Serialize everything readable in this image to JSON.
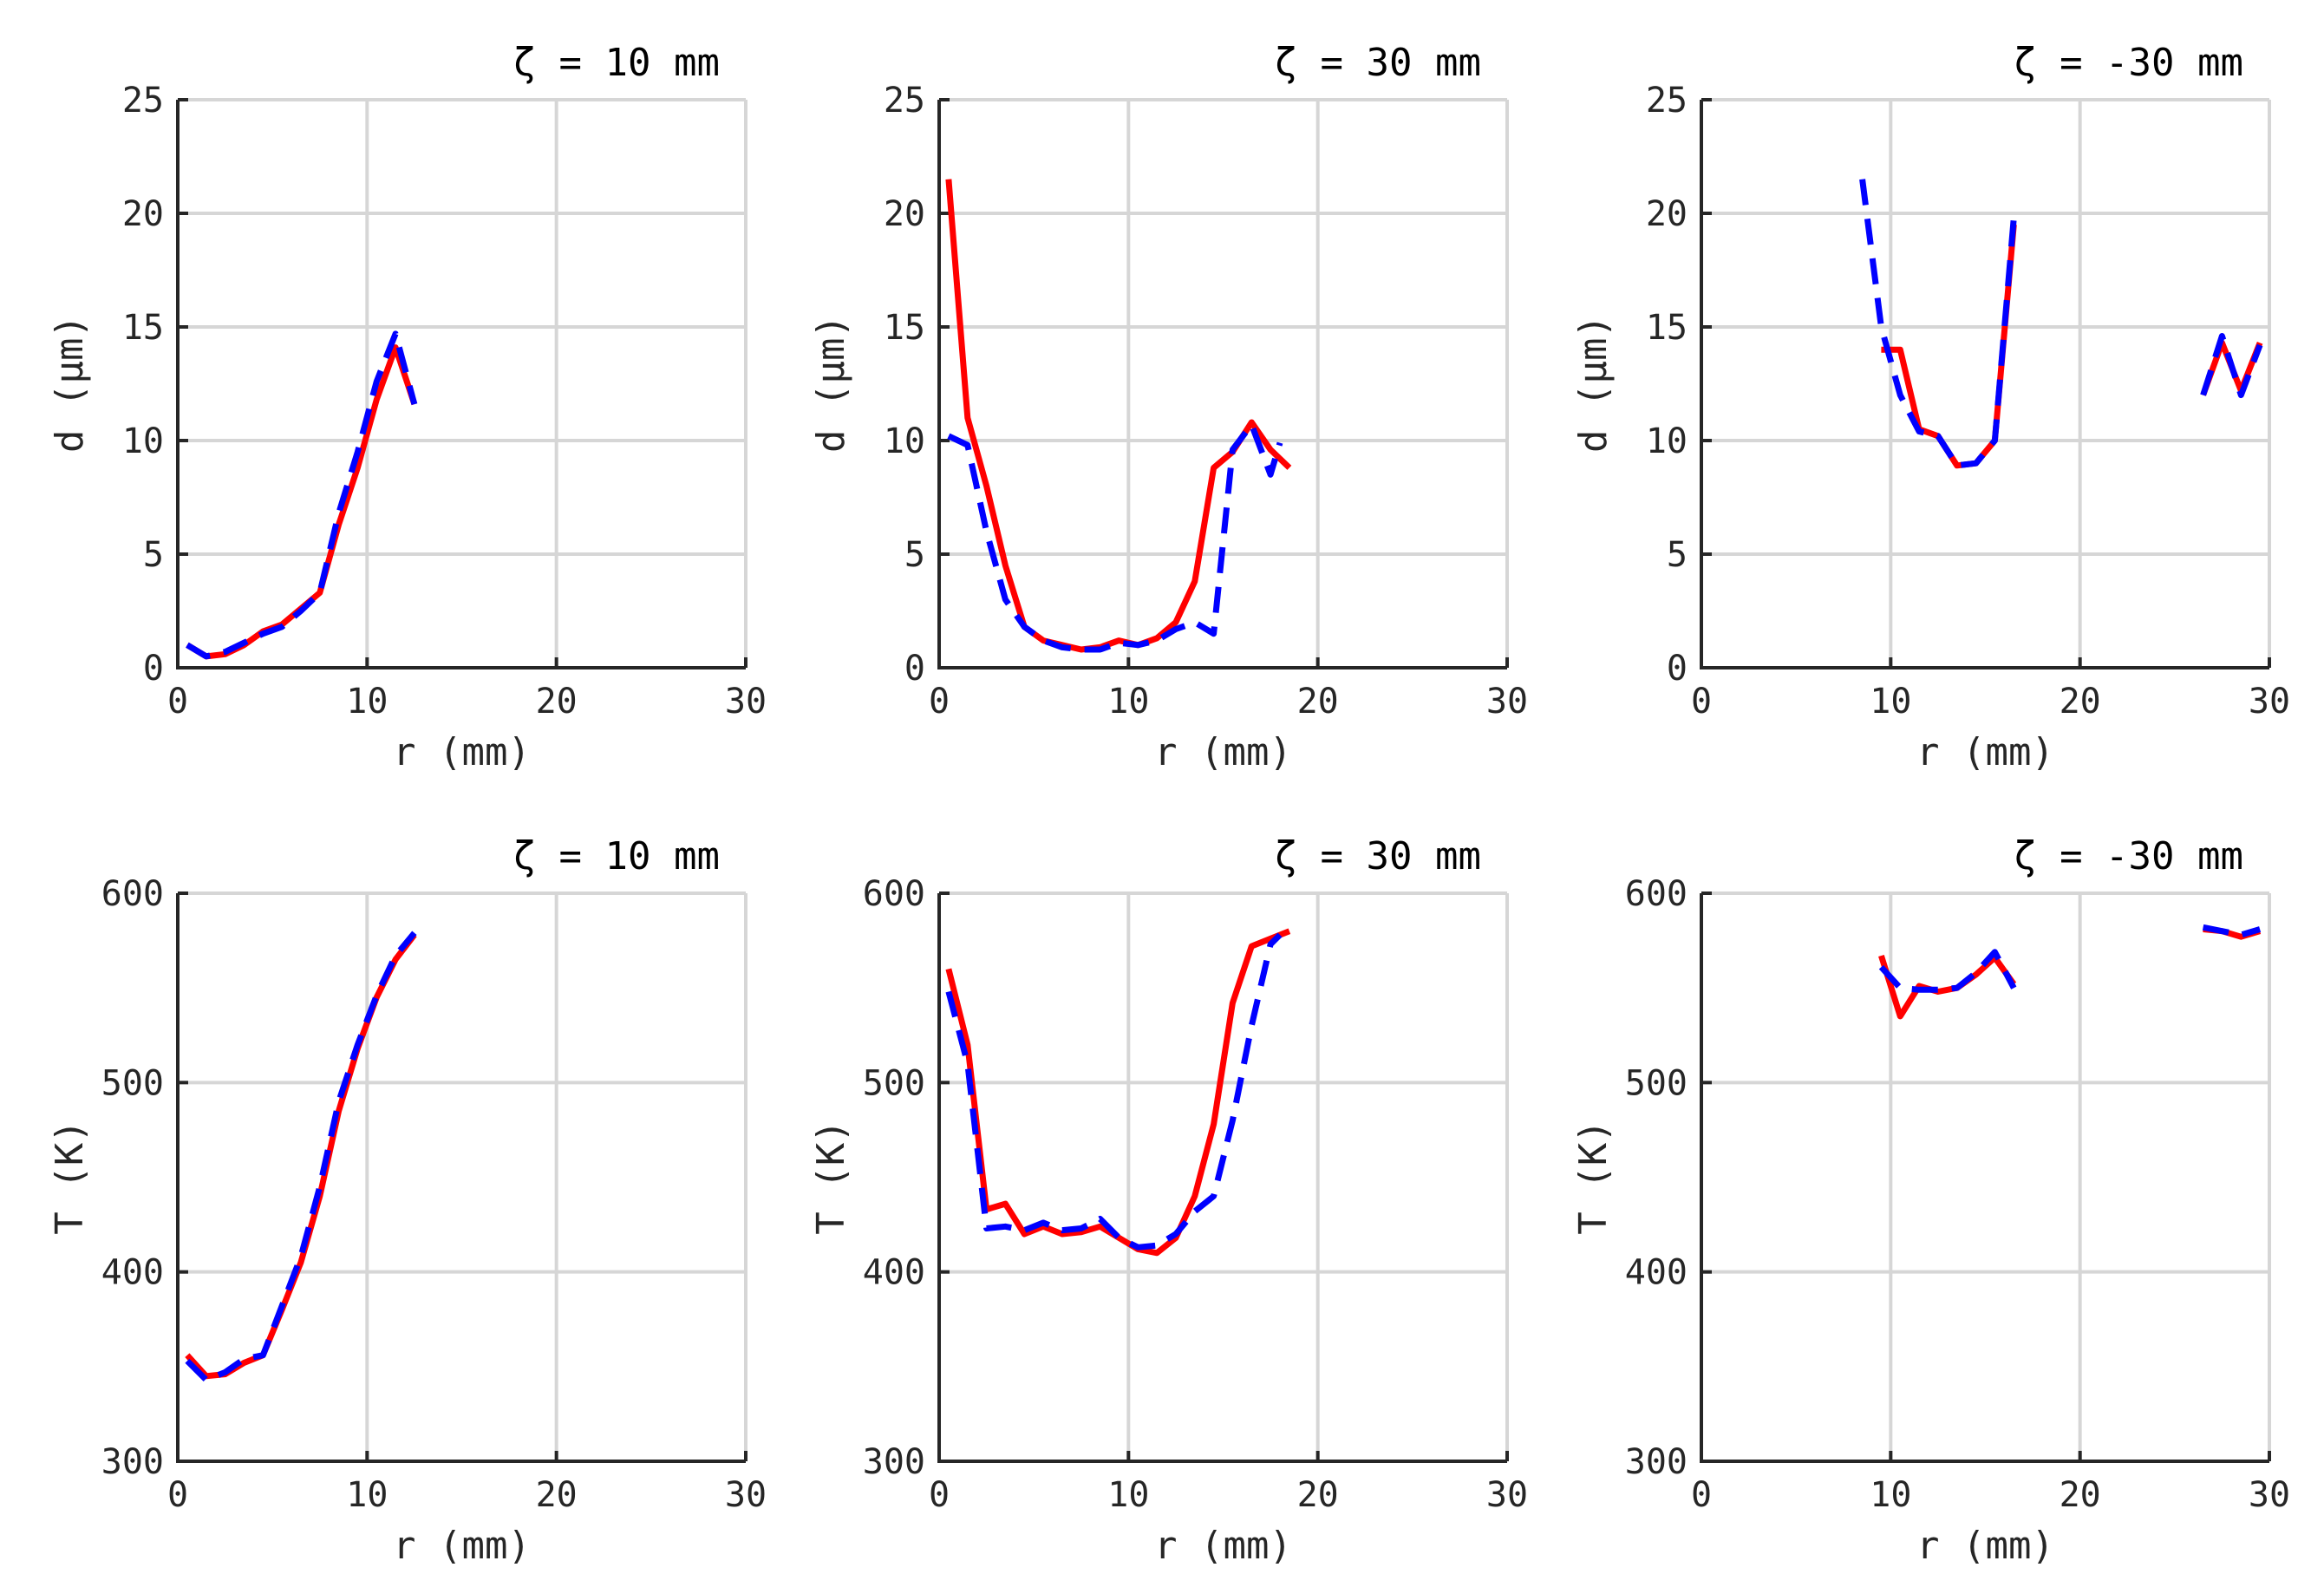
{
  "chart_data": [
    {
      "type": "line",
      "title": "ζ = 10 mm",
      "xlabel": "r (mm)",
      "ylabel": "d (μm)",
      "xlim": [
        0,
        30
      ],
      "ylim": [
        0,
        25
      ],
      "xticks": [
        0,
        10,
        20,
        30
      ],
      "yticks": [
        0,
        5,
        10,
        15,
        20,
        25
      ],
      "grid": true,
      "series": [
        {
          "name": "solid-red",
          "color": "#ff0000",
          "dash": "solid",
          "x": [
            0.5,
            1.5,
            2.5,
            3.5,
            4.5,
            5.5,
            6.5,
            7.5,
            8.5,
            9.5,
            10.5,
            11.5,
            12.5
          ],
          "y": [
            1.0,
            0.5,
            0.6,
            1.0,
            1.6,
            1.9,
            2.6,
            3.3,
            6.3,
            8.8,
            11.8,
            14.1,
            11.6
          ]
        },
        {
          "name": "dashed-blue",
          "color": "#0000ff",
          "dash": "dashed",
          "x": [
            0.5,
            1.5,
            2.5,
            3.5,
            4.5,
            5.5,
            6.5,
            7.5,
            8.5,
            9.5,
            10.5,
            11.5,
            12.5
          ],
          "y": [
            1.0,
            0.5,
            0.7,
            1.1,
            1.5,
            1.8,
            2.5,
            3.3,
            6.8,
            9.5,
            12.6,
            14.7,
            11.6
          ]
        }
      ]
    },
    {
      "type": "line",
      "title": "ζ = 30 mm",
      "xlabel": "r (mm)",
      "ylabel": "d (μm)",
      "xlim": [
        0,
        30
      ],
      "ylim": [
        0,
        25
      ],
      "xticks": [
        0,
        10,
        20,
        30
      ],
      "yticks": [
        0,
        5,
        10,
        15,
        20,
        25
      ],
      "grid": true,
      "series": [
        {
          "name": "solid-red",
          "color": "#ff0000",
          "dash": "solid",
          "x": [
            0.5,
            1.5,
            2.5,
            3.5,
            4.5,
            5.5,
            6.5,
            7.5,
            8.5,
            9.5,
            10.5,
            11.5,
            12.5,
            13.5,
            14.5,
            15.5,
            16.5,
            17.5,
            18.5
          ],
          "y": [
            21.5,
            11.0,
            8.0,
            4.5,
            1.8,
            1.2,
            1.0,
            0.8,
            0.9,
            1.2,
            1.0,
            1.3,
            2.0,
            3.8,
            8.8,
            9.5,
            10.8,
            9.6,
            8.8
          ]
        },
        {
          "name": "dashed-blue",
          "color": "#0000ff",
          "dash": "dashed",
          "x": [
            0.5,
            1.5,
            2.5,
            3.5,
            4.5,
            5.5,
            6.5,
            7.5,
            8.5,
            9.5,
            10.5,
            11.5,
            12.5,
            13.5,
            14.5,
            15.5,
            16.5,
            17.5,
            18.0
          ],
          "y": [
            10.2,
            9.8,
            6.0,
            3.0,
            1.8,
            1.2,
            0.9,
            0.8,
            0.8,
            1.1,
            1.0,
            1.2,
            1.7,
            2.0,
            1.5,
            9.6,
            10.7,
            8.5,
            9.9
          ]
        }
      ]
    },
    {
      "type": "line",
      "title": "ζ = -30 mm",
      "xlabel": "r (mm)",
      "ylabel": "d (μm)",
      "xlim": [
        0,
        30
      ],
      "ylim": [
        0,
        25
      ],
      "xticks": [
        0,
        10,
        20,
        30
      ],
      "yticks": [
        0,
        5,
        10,
        15,
        20,
        25
      ],
      "grid": true,
      "series": [
        {
          "name": "solid-red",
          "color": "#ff0000",
          "dash": "solid",
          "segments": [
            {
              "x": [
                9.5,
                10.5,
                11.5,
                12.5,
                13.5,
                14.5,
                15.5,
                16.5
              ],
              "y": [
                14.0,
                14.0,
                10.5,
                10.2,
                8.9,
                9.0,
                10.0,
                19.5
              ]
            },
            {
              "x": [
                26.5,
                27.5,
                28.5,
                29.5
              ],
              "y": [
                12.0,
                14.3,
                12.2,
                14.3
              ]
            }
          ]
        },
        {
          "name": "dashed-blue",
          "color": "#0000ff",
          "dash": "dashed",
          "segments": [
            {
              "x": [
                8.5,
                9.5,
                10.5,
                11.5,
                12.5,
                13.5,
                14.5,
                15.5,
                16.5
              ],
              "y": [
                21.5,
                15.0,
                12.0,
                10.4,
                10.2,
                8.9,
                9.0,
                10.0,
                19.8
              ]
            },
            {
              "x": [
                26.5,
                27.5,
                28.5,
                29.5
              ],
              "y": [
                12.0,
                14.6,
                12.0,
                14.2
              ]
            }
          ]
        }
      ]
    },
    {
      "type": "line",
      "title": "ζ = 10 mm",
      "xlabel": "r (mm)",
      "ylabel": "T (K)",
      "xlim": [
        0,
        30
      ],
      "ylim": [
        300,
        600
      ],
      "xticks": [
        0,
        10,
        20,
        30
      ],
      "yticks": [
        300,
        400,
        500,
        600
      ],
      "grid": true,
      "series": [
        {
          "name": "solid-red",
          "color": "#ff0000",
          "dash": "solid",
          "x": [
            0.5,
            1.5,
            2.5,
            3.5,
            4.5,
            5.5,
            6.5,
            7.5,
            8.5,
            9.5,
            10.5,
            11.5,
            12.5
          ],
          "y": [
            356,
            345,
            346,
            352,
            356,
            380,
            405,
            440,
            485,
            518,
            545,
            565,
            578
          ]
        },
        {
          "name": "dashed-blue",
          "color": "#0000ff",
          "dash": "dashed",
          "x": [
            0.5,
            1.5,
            2.5,
            3.5,
            4.5,
            5.5,
            6.5,
            7.5,
            8.5,
            9.5,
            10.5,
            11.5,
            12.5
          ],
          "y": [
            353,
            343,
            347,
            354,
            356,
            382,
            408,
            445,
            490,
            520,
            546,
            567,
            579
          ]
        }
      ]
    },
    {
      "type": "line",
      "title": "ζ = 30 mm",
      "xlabel": "r (mm)",
      "ylabel": "T (K)",
      "xlim": [
        0,
        30
      ],
      "ylim": [
        300,
        600
      ],
      "xticks": [
        0,
        10,
        20,
        30
      ],
      "yticks": [
        300,
        400,
        500,
        600
      ],
      "grid": true,
      "series": [
        {
          "name": "solid-red",
          "color": "#ff0000",
          "dash": "solid",
          "x": [
            0.5,
            1.5,
            2.5,
            3.5,
            4.5,
            5.5,
            6.5,
            7.5,
            8.5,
            9.5,
            10.5,
            11.5,
            12.5,
            13.5,
            14.5,
            15.5,
            16.5,
            17.5,
            18.5
          ],
          "y": [
            560,
            520,
            433,
            436,
            420,
            424,
            420,
            421,
            424,
            418,
            412,
            410,
            418,
            440,
            478,
            542,
            572,
            576,
            580
          ]
        },
        {
          "name": "dashed-blue",
          "color": "#0000ff",
          "dash": "dashed",
          "x": [
            0.5,
            1.5,
            2.5,
            3.5,
            4.5,
            5.5,
            6.5,
            7.5,
            8.5,
            9.5,
            10.5,
            11.5,
            12.5,
            13.5,
            14.5,
            15.5,
            16.5,
            17.5,
            18.0
          ],
          "y": [
            548,
            510,
            423,
            424,
            422,
            426,
            422,
            423,
            428,
            418,
            413,
            414,
            420,
            432,
            440,
            480,
            530,
            573,
            578
          ]
        }
      ]
    },
    {
      "type": "line",
      "title": "ζ = -30 mm",
      "xlabel": "r (mm)",
      "ylabel": "T (K)",
      "xlim": [
        0,
        30
      ],
      "ylim": [
        300,
        600
      ],
      "xticks": [
        0,
        10,
        20,
        30
      ],
      "yticks": [
        300,
        400,
        500,
        600
      ],
      "grid": true,
      "series": [
        {
          "name": "solid-red",
          "color": "#ff0000",
          "dash": "solid",
          "segments": [
            {
              "x": [
                9.5,
                10.5,
                11.5,
                12.5,
                13.5,
                14.5,
                15.5,
                16.5
              ],
              "y": [
                567,
                535,
                551,
                548,
                550,
                557,
                566,
                552
              ]
            },
            {
              "x": [
                26.5,
                27.5,
                28.5,
                29.5
              ],
              "y": [
                581,
                580,
                577,
                580
              ]
            }
          ]
        },
        {
          "name": "dashed-blue",
          "color": "#0000ff",
          "dash": "dashed",
          "segments": [
            {
              "x": [
                9.5,
                10.5,
                11.5,
                12.5,
                13.5,
                14.5,
                15.5,
                16.5
              ],
              "y": [
                561,
                550,
                549,
                549,
                550,
                558,
                569,
                550
              ]
            },
            {
              "x": [
                26.5,
                27.5,
                28.5,
                29.5
              ],
              "y": [
                582,
                580,
                578,
                581
              ]
            }
          ]
        }
      ]
    }
  ]
}
